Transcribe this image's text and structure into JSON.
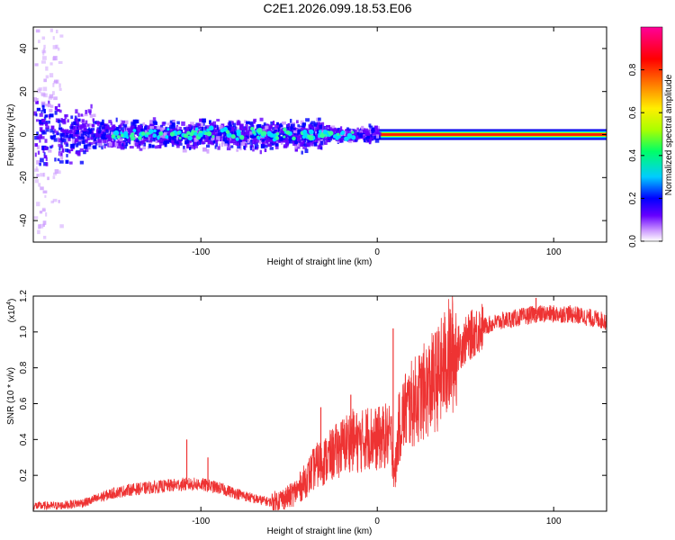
{
  "figure_title": "C2E1.2026.099.18.53.E06",
  "chart_data": [
    {
      "type": "heatmap",
      "title": "",
      "xlabel": "Height of straight line (km)",
      "ylabel": "Frequency (Hz)",
      "xlim": [
        -195,
        130
      ],
      "ylim": [
        -50,
        50
      ],
      "xticks": [
        -100,
        0,
        100
      ],
      "xtick_labels": [
        "-100",
        "0",
        "100"
      ],
      "yticks": [
        -40,
        -20,
        0,
        20,
        40
      ],
      "ytick_labels": [
        "-40",
        "-20",
        "0",
        "20",
        "40"
      ],
      "colorbar": {
        "label": "Normalized spectral amplitude",
        "range": [
          0,
          1
        ],
        "ticks": [
          0.0,
          0.2,
          0.4,
          0.6,
          0.8
        ],
        "tick_labels": [
          "0.0",
          "0.2",
          "0.4",
          "0.6",
          "0.8"
        ],
        "colors": [
          "#ffffff",
          "#cc99ff",
          "#6600ff",
          "#0000ff",
          "#00ccff",
          "#00ff66",
          "#aaff00",
          "#ffee00",
          "#ff8800",
          "#ff0000",
          "#ff0099"
        ]
      },
      "ridge": {
        "description": "Narrow high-amplitude line near 0 Hz",
        "x_start": 0,
        "x_end": 130,
        "frequency": 0,
        "amplitude": 0.9
      },
      "scatter_region": {
        "x_start": -195,
        "x_end": 0,
        "frequency_spread": 10,
        "amplitude": 0.3
      }
    },
    {
      "type": "line",
      "title": "",
      "xlabel": "Height of straight line (km)",
      "ylabel": "SNR (10 * v/v)",
      "y_multiplier_label": "(x10",
      "y_multiplier_exp": "4",
      "y_multiplier_close": ")",
      "xlim": [
        -195,
        130
      ],
      "ylim": [
        0,
        1.2
      ],
      "xticks": [
        -100,
        0,
        100
      ],
      "xtick_labels": [
        "-100",
        "0",
        "100"
      ],
      "yticks": [
        0.2,
        0.4,
        0.6,
        0.8,
        1.0,
        1.2
      ],
      "ytick_labels": [
        "0.2",
        "0.4",
        "0.6",
        "0.8",
        "1.0",
        "1.2"
      ],
      "series": [
        {
          "name": "SNR",
          "color": "#ee3333",
          "x": [
            -195,
            -180,
            -165,
            -150,
            -140,
            -130,
            -120,
            -110,
            -100,
            -90,
            -80,
            -70,
            -60,
            -50,
            -45,
            -40,
            -35,
            -30,
            -25,
            -20,
            -15,
            -10,
            -5,
            0,
            5,
            8,
            10,
            12,
            15,
            20,
            25,
            30,
            35,
            40,
            45,
            50,
            55,
            60,
            70,
            80,
            90,
            100,
            110,
            120,
            130
          ],
          "y": [
            0.03,
            0.03,
            0.05,
            0.1,
            0.12,
            0.13,
            0.14,
            0.15,
            0.15,
            0.13,
            0.1,
            0.07,
            0.05,
            0.08,
            0.12,
            0.18,
            0.25,
            0.28,
            0.32,
            0.36,
            0.4,
            0.38,
            0.42,
            0.4,
            0.42,
            0.4,
            0.2,
            0.45,
            0.55,
            0.6,
            0.65,
            0.7,
            0.75,
            0.85,
            0.9,
            0.95,
            1.0,
            1.03,
            1.06,
            1.08,
            1.1,
            1.1,
            1.1,
            1.08,
            1.06
          ],
          "spikes": [
            {
              "x": -108,
              "y": 0.4
            },
            {
              "x": -96,
              "y": 0.3
            },
            {
              "x": -32,
              "y": 0.58
            },
            {
              "x": -15,
              "y": 0.65
            },
            {
              "x": 9,
              "y": 1.02
            },
            {
              "x": 90,
              "y": 1.19
            }
          ]
        }
      ]
    }
  ]
}
